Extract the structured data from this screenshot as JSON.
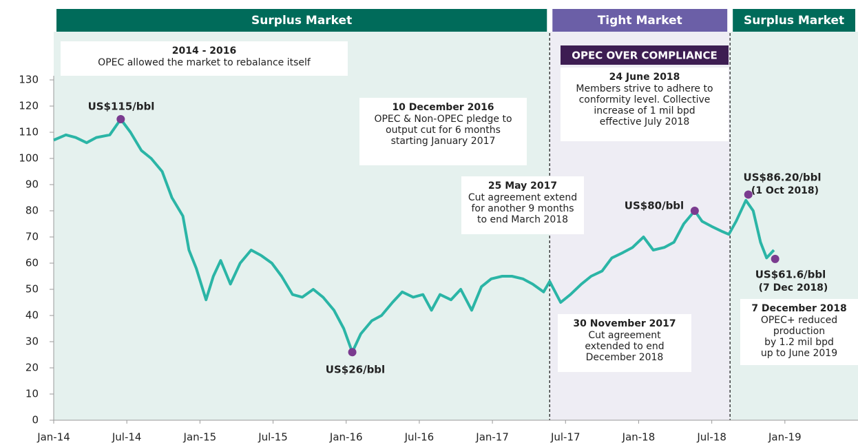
{
  "chart_data": {
    "type": "line",
    "xlim": [
      0,
      66
    ],
    "ylim": [
      0,
      130
    ],
    "yticks": [
      0,
      10,
      20,
      30,
      40,
      50,
      60,
      70,
      80,
      90,
      100,
      110,
      120,
      130
    ],
    "xticks": [
      {
        "value": 0,
        "label": "Jan-14"
      },
      {
        "value": 6,
        "label": "Jul-14"
      },
      {
        "value": 12,
        "label": "Jan-15"
      },
      {
        "value": 18,
        "label": "Jul-15"
      },
      {
        "value": 24,
        "label": "Jan-16"
      },
      {
        "value": 30,
        "label": "Jul-16"
      },
      {
        "value": 36,
        "label": "Jan-17"
      },
      {
        "value": 42,
        "label": "Jul-17"
      },
      {
        "value": 48,
        "label": "Jan-18"
      },
      {
        "value": 54,
        "label": "Jul-18"
      },
      {
        "value": 60,
        "label": "Jan-19"
      }
    ],
    "x": [
      0,
      1.0,
      1.8,
      2.7,
      3.5,
      4.6,
      5.5,
      6.3,
      7.2,
      8.0,
      8.9,
      9.7,
      10.6,
      11.1,
      11.7,
      12.5,
      13.1,
      13.7,
      14.5,
      15.3,
      16.2,
      17.0,
      17.9,
      18.7,
      19.6,
      20.4,
      21.3,
      22.1,
      23.0,
      23.8,
      24.5,
      25.2,
      26.1,
      26.9,
      27.8,
      28.6,
      29.5,
      30.3,
      31.0,
      31.7,
      32.6,
      33.4,
      34.3,
      35.1,
      35.9,
      36.8,
      37.6,
      38.5,
      39.3,
      40.2,
      40.7,
      41.6,
      42.4,
      43.3,
      44.1,
      45.0,
      45.8,
      46.7,
      47.5,
      48.4,
      49.2,
      50.1,
      50.9,
      51.7,
      52.6,
      53.2,
      54.0,
      54.9,
      55.4,
      56.0,
      56.8,
      57.4,
      58.0,
      58.5,
      59.1
    ],
    "series": [
      {
        "color": "#2bb5a6",
        "values": [
          107,
          109,
          108,
          106,
          108,
          109,
          115,
          110,
          103,
          100,
          95,
          85,
          78,
          65,
          58,
          46,
          55,
          61,
          52,
          60,
          65,
          63,
          60,
          55,
          48,
          47,
          50,
          47,
          42,
          35,
          26,
          33,
          38,
          40,
          45,
          49,
          47,
          48,
          42,
          48,
          46,
          50,
          42,
          51,
          54,
          55,
          55,
          54,
          52,
          49,
          53,
          45,
          48,
          52,
          55,
          57,
          62,
          64,
          66,
          70,
          65,
          66,
          68,
          75,
          80,
          76,
          74,
          72,
          71,
          76,
          84,
          80,
          68,
          62,
          65
        ]
      }
    ],
    "marker_color": "#7a3b8f",
    "highlights": [
      {
        "x": 5.5,
        "value": 115,
        "label": "US$115/bbl"
      },
      {
        "x": 24.5,
        "value": 26,
        "label": "US$26/bbl"
      },
      {
        "x": 52.6,
        "value": 80,
        "label": "US$80/bbl"
      },
      {
        "x": 57,
        "value": 86.2,
        "label": "US$86.20/bbl",
        "date": "(1 Oct 2018)"
      },
      {
        "x": 59.2,
        "value": 61.6,
        "label": "US$61.6/bbl",
        "date": "(7 Dec 2018)"
      }
    ],
    "regions": [
      {
        "label": "Surplus Market",
        "start": 0,
        "end": 40.7,
        "color": "#006b5a",
        "shade": "#e5f1ee"
      },
      {
        "label": "Tight Market",
        "start": 40.7,
        "end": 55.5,
        "color": "#6b5fa7",
        "shade": "#eeedf4"
      },
      {
        "label": "Surplus Market",
        "start": 55.5,
        "end": 66,
        "color": "#006b5a",
        "shade": "#e5f1ee"
      }
    ],
    "banner": "OPEC OVER COMPLIANCE",
    "annotations": [
      {
        "title": "2014 - 2016",
        "lines": [
          "OPEC allowed the market to rebalance itself"
        ]
      },
      {
        "title": "10 December 2016",
        "lines": [
          "OPEC & Non-OPEC pledge to",
          "output cut for 6 months",
          "starting January 2017"
        ]
      },
      {
        "title": "25 May 2017",
        "lines": [
          "Cut agreement extend",
          "for another 9 months",
          "to end March 2018"
        ]
      },
      {
        "title": "24 June 2018",
        "lines": [
          "Members strive to adhere to",
          "conformity level. Collective",
          "increase of 1 mil bpd",
          "effective July 2018"
        ]
      },
      {
        "title": "30 November 2017",
        "lines": [
          "Cut agreement",
          "extended to end",
          "December 2018"
        ]
      },
      {
        "title": "7 December 2018",
        "lines": [
          "OPEC+ reduced",
          "production",
          "by 1.2 mil bpd",
          "up to June 2019"
        ]
      }
    ]
  }
}
